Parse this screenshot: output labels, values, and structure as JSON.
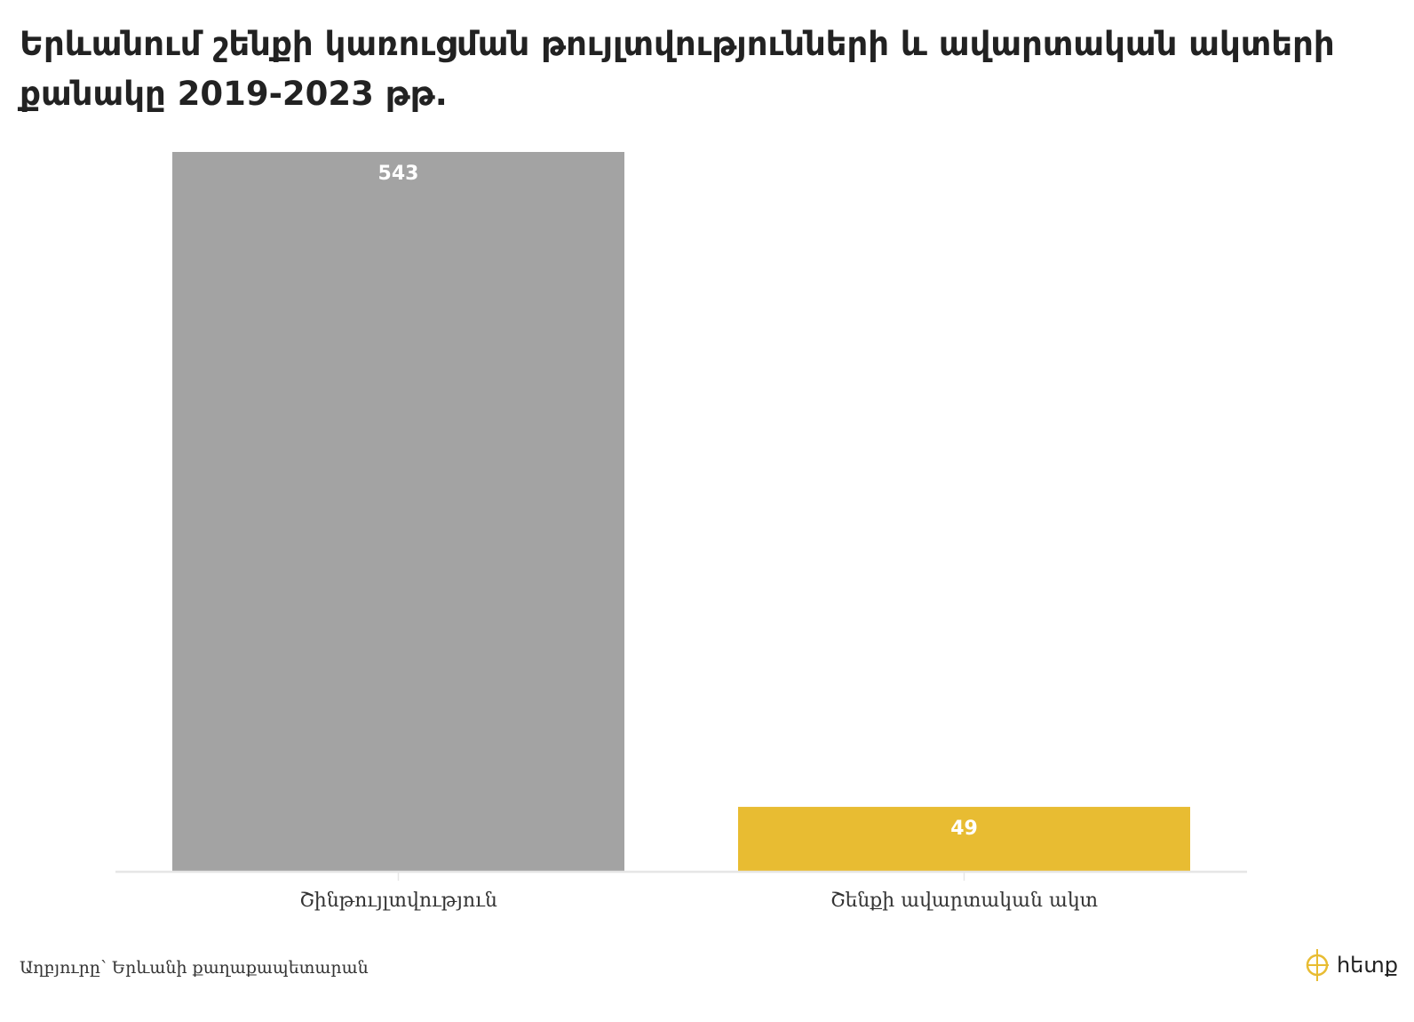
{
  "header": {
    "title": "Երևանում շենքի կառուցման թույլտվությունների և ավարտական ակտերի քանակը 2019-2023 թթ."
  },
  "chart_data": {
    "type": "bar",
    "title": "Երևանում շենքի կառուցման թույլտվությունների և ավարտական ակտերի քանակը 2019-2023 թթ.",
    "categories": [
      "Շինթույլտվություն",
      "Շենքի ավարտական ակտ"
    ],
    "values": [
      543,
      49
    ],
    "colors": [
      "#a3a3a3",
      "#e8bc32"
    ],
    "data_labels": [
      "543",
      "49"
    ],
    "xlabel": "",
    "ylabel": "",
    "ylim": [
      0,
      543
    ],
    "grid": false,
    "legend": "none"
  },
  "footer": {
    "source": "Աղբյուրը՝ Երևանի քաղաքապետարան",
    "logo_text": "հետք"
  },
  "colors": {
    "logo_accent": "#e8bc32",
    "baseline": "#e6e6e6"
  }
}
